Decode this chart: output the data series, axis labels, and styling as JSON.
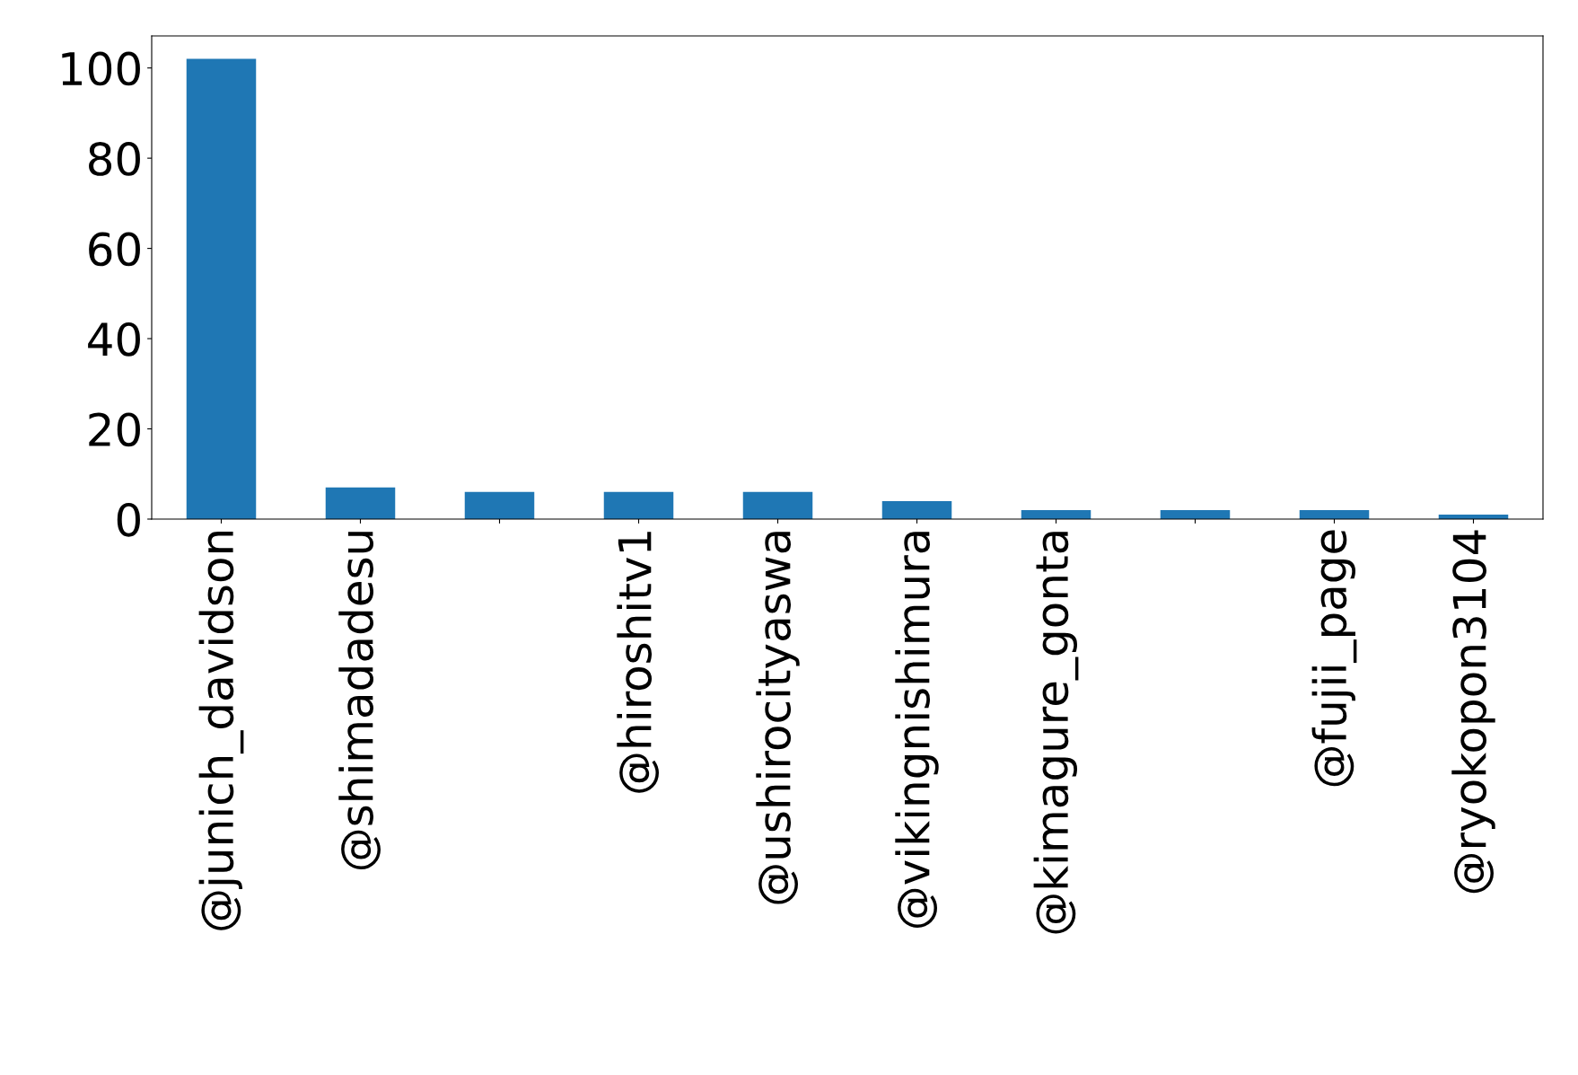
{
  "chart_data": {
    "type": "bar",
    "categories": [
      "@junich_davidson",
      "@shimadadesu",
      null,
      "@hiroshitv1",
      "@ushirocityaswa",
      "@vikingnishimura",
      "@kimagure_gonta",
      null,
      "@fujii_page",
      "@ryokopon3104"
    ],
    "values": [
      102,
      7,
      6,
      6,
      6,
      4,
      2,
      2,
      2,
      1
    ],
    "color": "#1f77b4",
    "ylim": [
      0,
      107.1
    ],
    "yticks": [
      0,
      20,
      40,
      60,
      80,
      100
    ],
    "grid": false,
    "legend": false
  }
}
